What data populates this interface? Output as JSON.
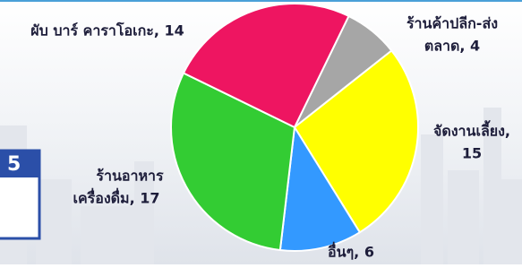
{
  "badge": "5",
  "chart_data": {
    "type": "pie",
    "categories": [
      [
        "ร้านค้าปลีก-ส่ง",
        "ตลาด, 4"
      ],
      [
        "จัดงานเลี้ยง,",
        "15"
      ],
      [
        "อื่นๆ, 6"
      ],
      [
        "ร้านอาหาร",
        "เครื่องดื่ม, 17"
      ],
      [
        "ผับ บาร์ คาราโอเกะ, 14"
      ]
    ],
    "values": [
      4,
      15,
      6,
      17,
      14
    ],
    "colors": [
      "#a6a6a6",
      "#ffff00",
      "#3399ff",
      "#33cc33",
      "#ee1561"
    ]
  }
}
